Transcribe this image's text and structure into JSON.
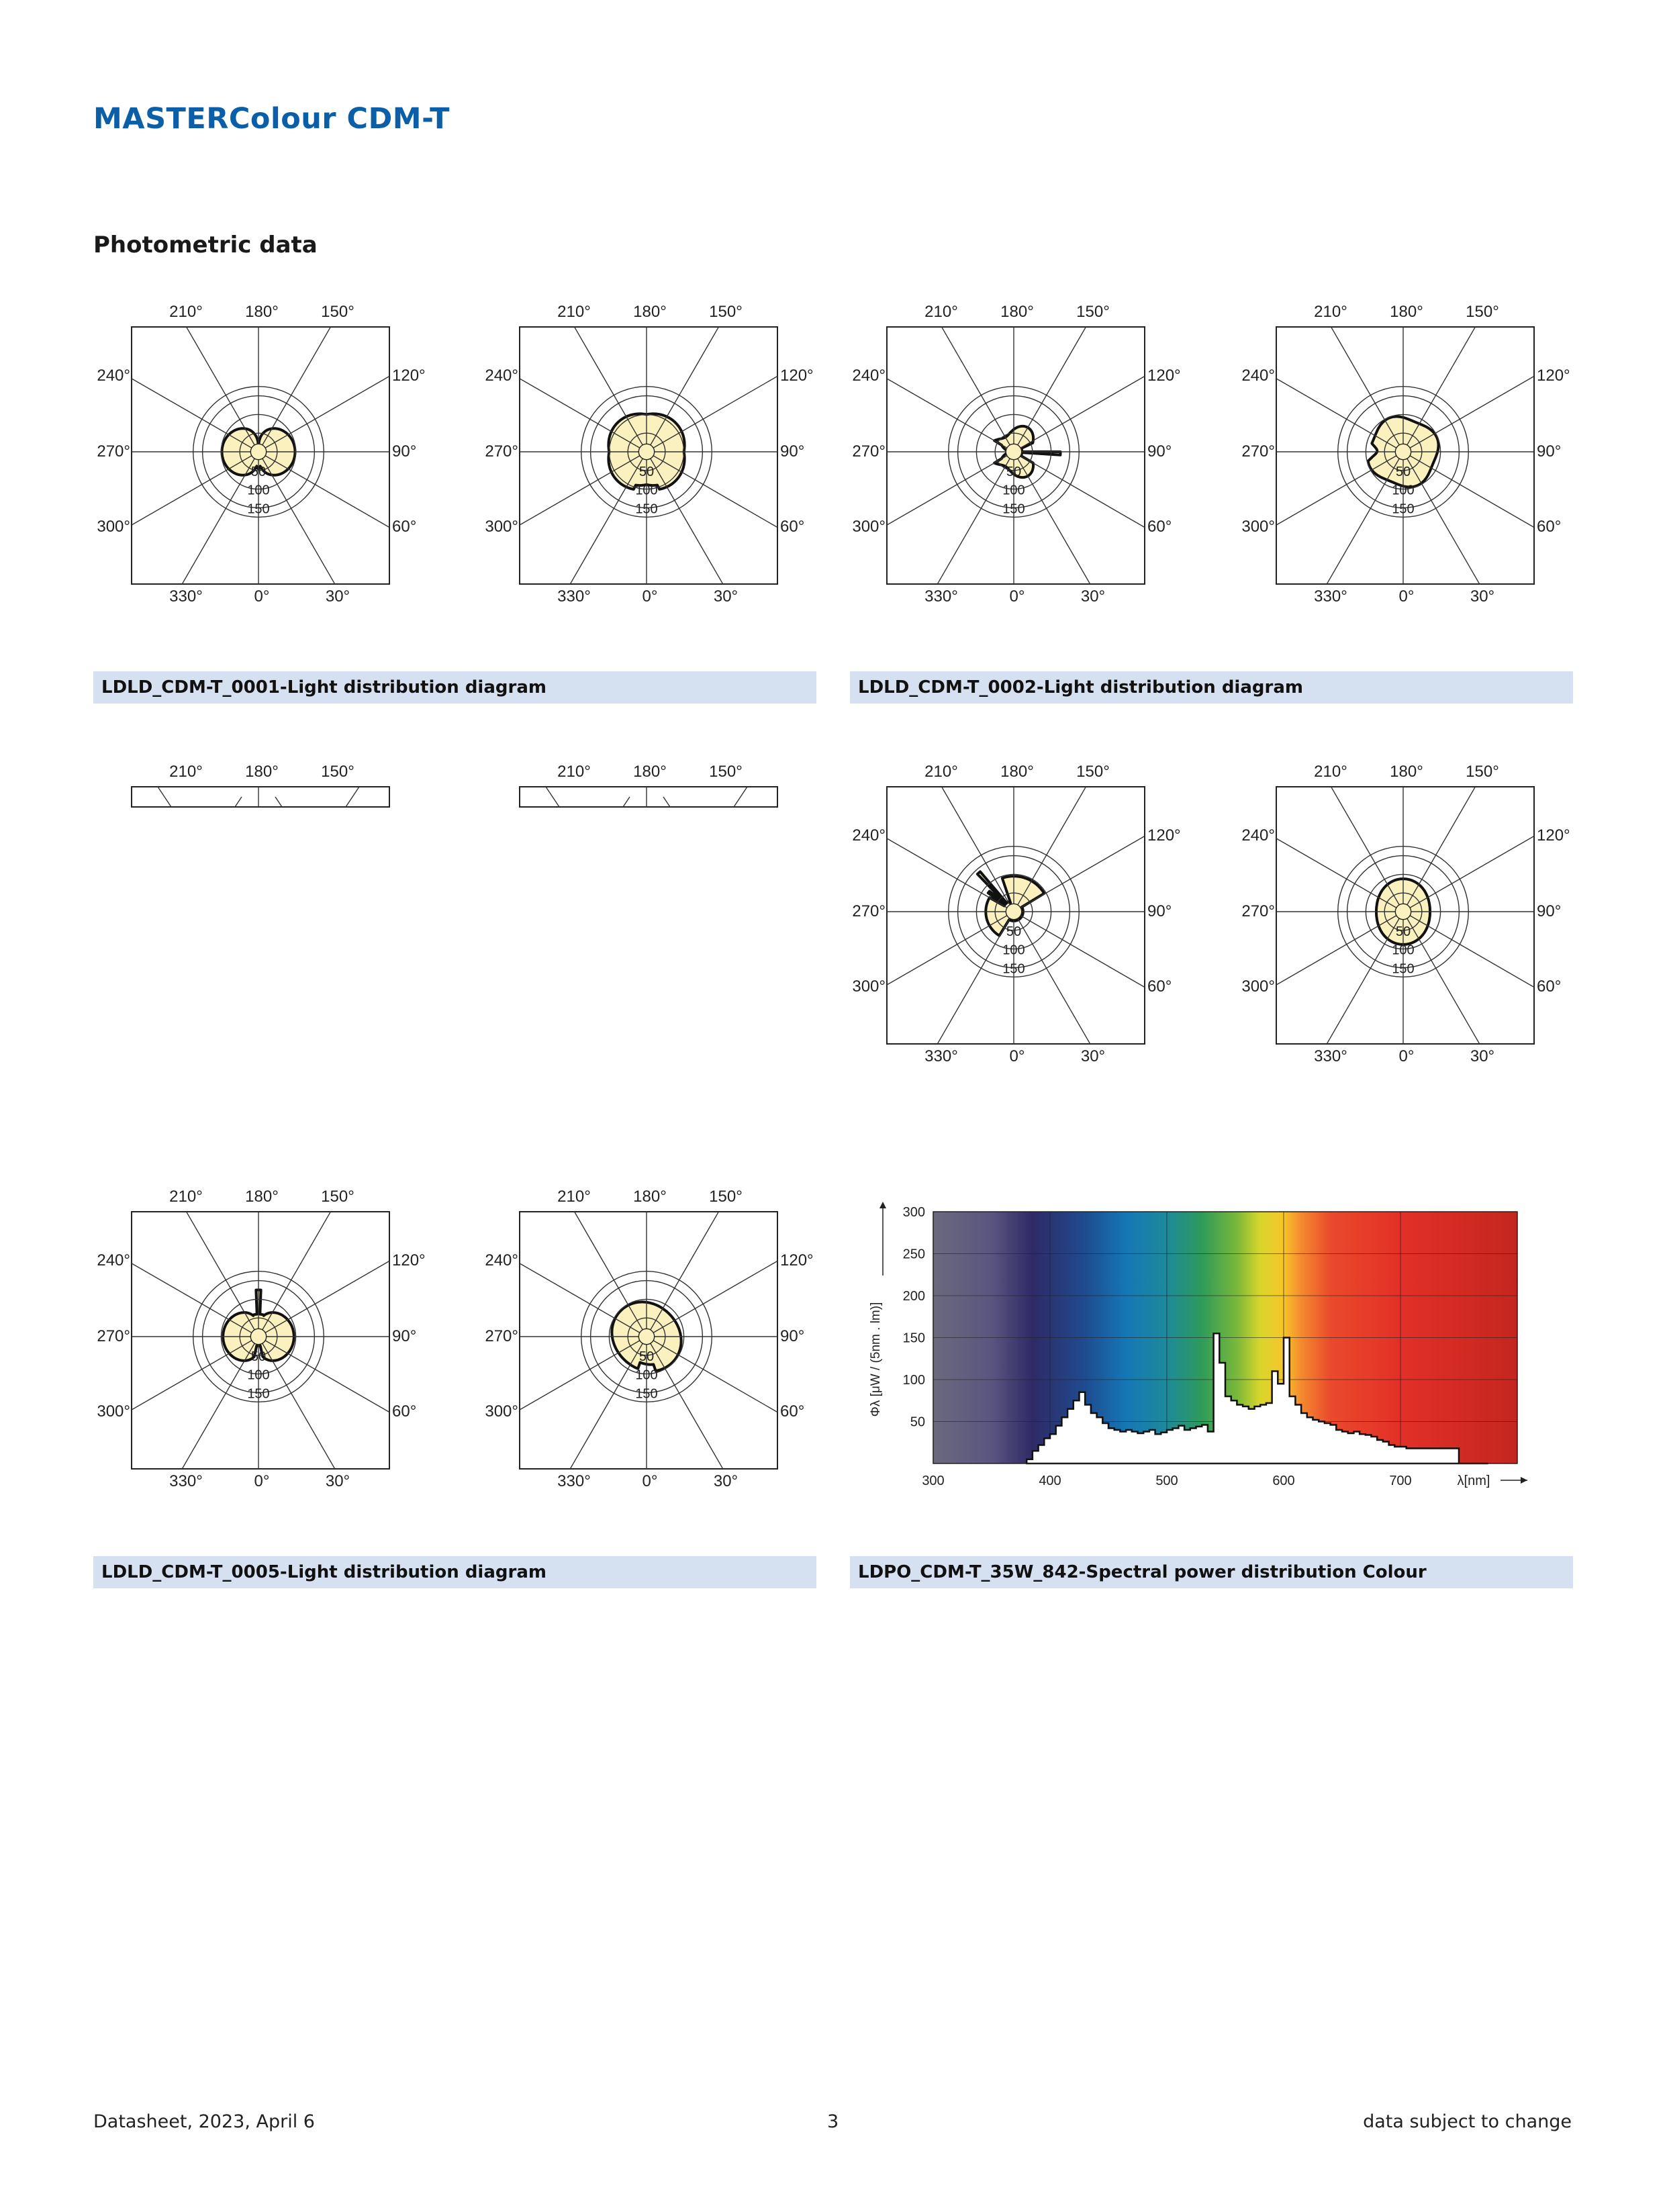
{
  "header": {
    "title": "MASTERColour CDM-T",
    "section": "Photometric data"
  },
  "polar_labels": {
    "top": [
      "210°",
      "180°",
      "150°"
    ],
    "bottom": [
      "330°",
      "0°",
      "30°"
    ],
    "left": [
      "240°",
      "270°",
      "300°"
    ],
    "right": [
      "120°",
      "90°",
      "60°"
    ],
    "radial": [
      "50",
      "100",
      "150"
    ]
  },
  "captions": {
    "c1": "LDLD_CDM-T_0001-Light distribution diagram",
    "c2": "LDLD_CDM-T_0002-Light distribution diagram",
    "c3": "LDLD_CDM-T_0005-Light distribution diagram",
    "c4": "LDPO_CDM-T_35W_842-Spectral power distribution Colour"
  },
  "chart_data": [
    {
      "type": "polar",
      "diagram": "LDLD_CDM-T_0001 C0",
      "shape": "butterfly",
      "rmax": 175
    },
    {
      "type": "polar",
      "diagram": "LDLD_CDM-T_0001 C90",
      "shape": "round",
      "rmax": 175
    },
    {
      "type": "polar",
      "diagram": "LDLD_CDM-T_0002 C0",
      "shape": "spike-right",
      "rmax": 175
    },
    {
      "type": "polar",
      "diagram": "LDLD_CDM-T_0002 C90",
      "shape": "round-notch",
      "rmax": 175
    },
    {
      "type": "polar",
      "diagram": "LDLD_CDM-T_0002 C0b",
      "shape": "spike-up-left",
      "rmax": 175
    },
    {
      "type": "polar",
      "diagram": "LDLD_CDM-T_0002 C90b",
      "shape": "round-small",
      "rmax": 175
    },
    {
      "type": "polar",
      "diagram": "LDLD_CDM-T_0005 C0",
      "shape": "butterfly-spike",
      "rmax": 175
    },
    {
      "type": "polar",
      "diagram": "LDLD_CDM-T_0005 C90",
      "shape": "round-top",
      "rmax": 175
    },
    {
      "type": "area",
      "diagram": "LDPO_CDM-T_35W_842",
      "ylabel": "Φλ [μW / (5nm . lm)]",
      "xlabel": "λ[nm]",
      "xlim": [
        300,
        800
      ],
      "ylim": [
        0,
        300
      ],
      "xticks": [
        300,
        400,
        500,
        600,
        700
      ],
      "yticks": [
        50,
        100,
        150,
        200,
        250,
        300
      ],
      "x": [
        380,
        385,
        390,
        395,
        400,
        405,
        410,
        415,
        420,
        425,
        430,
        435,
        440,
        445,
        450,
        455,
        460,
        465,
        470,
        475,
        480,
        485,
        490,
        495,
        500,
        505,
        510,
        515,
        520,
        525,
        530,
        535,
        540,
        545,
        550,
        555,
        560,
        565,
        570,
        575,
        580,
        585,
        590,
        595,
        600,
        605,
        610,
        615,
        620,
        625,
        630,
        635,
        640,
        645,
        650,
        655,
        660,
        665,
        670,
        675,
        680,
        685,
        690,
        695,
        700,
        705,
        710,
        715,
        720,
        725,
        730,
        735,
        740,
        745,
        750,
        755,
        760,
        765,
        770
      ],
      "y": [
        5,
        15,
        22,
        30,
        35,
        45,
        55,
        65,
        75,
        85,
        70,
        60,
        55,
        48,
        42,
        40,
        38,
        40,
        38,
        36,
        38,
        40,
        35,
        37,
        40,
        42,
        45,
        40,
        42,
        44,
        46,
        38,
        155,
        120,
        80,
        75,
        70,
        68,
        65,
        68,
        70,
        72,
        110,
        95,
        150,
        80,
        70,
        60,
        55,
        52,
        50,
        48,
        46,
        40,
        38,
        36,
        38,
        35,
        34,
        32,
        28,
        26,
        22,
        20,
        20,
        18,
        18,
        18,
        18,
        18,
        18,
        18,
        18,
        18,
        0,
        0,
        0,
        0,
        0
      ]
    }
  ],
  "footer": {
    "left": "Datasheet, 2023, April 6",
    "center": "3",
    "right": "data subject to change"
  }
}
